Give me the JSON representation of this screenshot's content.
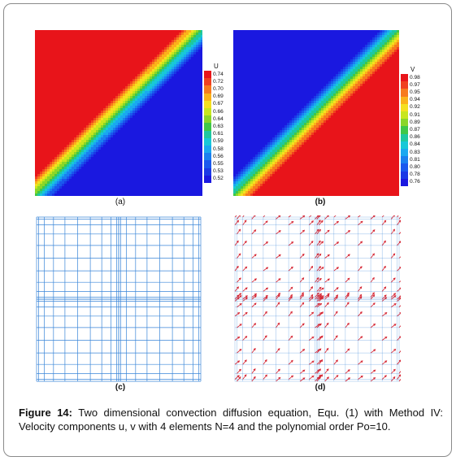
{
  "figure": {
    "caption_label": "Figure 14:",
    "caption_text": "Two dimensional convection diffusion equation, Equ. (1) with Method IV: Velocity components u, v with 4 elements N=4 and the polynomial order Po=10."
  },
  "panels": {
    "a": {
      "label": "(a)",
      "legend_title": "U",
      "legend_values": [
        "0.74",
        "0.72",
        "0.70",
        "0.69",
        "0.67",
        "0.66",
        "0.64",
        "0.63",
        "0.61",
        "0.59",
        "0.58",
        "0.56",
        "0.55",
        "0.53",
        "0.52"
      ]
    },
    "b": {
      "label": "(b)",
      "legend_title": "V",
      "legend_values": [
        "0.98",
        "0.97",
        "0.95",
        "0.94",
        "0.92",
        "0.91",
        "0.89",
        "0.87",
        "0.86",
        "0.84",
        "0.83",
        "0.81",
        "0.80",
        "0.78",
        "0.76"
      ]
    },
    "c": {
      "label": "(c)"
    },
    "d": {
      "label": "(d)"
    }
  },
  "colors": {
    "scale": [
      "#e8141a",
      "#f04020",
      "#f77a1e",
      "#fbb21a",
      "#f5e020",
      "#c8e61e",
      "#8ad628",
      "#3fc848",
      "#1ec8a0",
      "#18c8d8",
      "#1aa8f0",
      "#1a80f0",
      "#1a58ee",
      "#1a38e6",
      "#1a18e0"
    ],
    "mesh": "#3a86d8",
    "vectors": "#d4202e"
  }
}
